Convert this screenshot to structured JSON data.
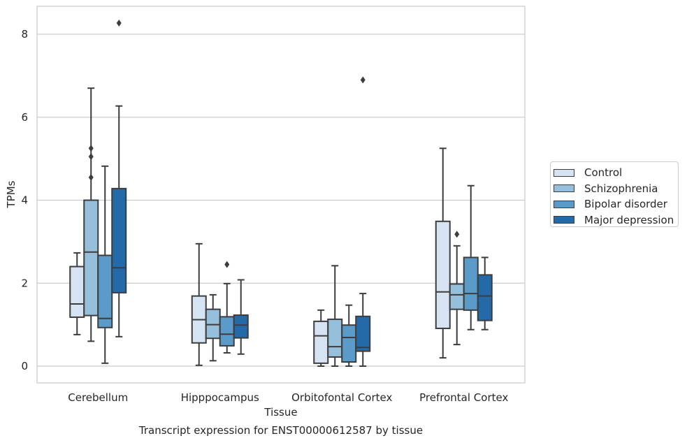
{
  "chart_data": {
    "type": "boxplot",
    "title": "Transcript expression for ENST00000612587 by tissue",
    "xlabel": "Tissue",
    "ylabel": "TPMs",
    "ylim": [
      -0.4,
      8.7
    ],
    "yticks": [
      0,
      2,
      4,
      6,
      8
    ],
    "grid": "horizontal",
    "legend_position": "right",
    "categories": [
      "Cerebellum",
      "Hipppocampus",
      "Orbitofontal Cortex",
      "Prefrontal Cortex"
    ],
    "series": [
      {
        "name": "Control",
        "color": "#d5e3f2",
        "boxes": [
          {
            "whisker_low": 0.76,
            "q1": 1.18,
            "median": 1.5,
            "q3": 2.4,
            "whisker_high": 2.73,
            "outliers": []
          },
          {
            "whisker_low": 0.02,
            "q1": 0.56,
            "median": 1.12,
            "q3": 1.69,
            "whisker_high": 2.95,
            "outliers": []
          },
          {
            "whisker_low": 0.0,
            "q1": 0.07,
            "median": 0.73,
            "q3": 1.08,
            "whisker_high": 1.35,
            "outliers": []
          },
          {
            "whisker_low": 0.2,
            "q1": 0.91,
            "median": 1.79,
            "q3": 3.49,
            "whisker_high": 5.25,
            "outliers": []
          }
        ]
      },
      {
        "name": "Schizophrenia",
        "color": "#96bfdb",
        "boxes": [
          {
            "whisker_low": 0.6,
            "q1": 1.22,
            "median": 2.75,
            "q3": 4.0,
            "whisker_high": 6.7,
            "outliers": [
              4.55,
              5.05,
              5.25
            ]
          },
          {
            "whisker_low": 0.13,
            "q1": 0.67,
            "median": 1.0,
            "q3": 1.37,
            "whisker_high": 1.72,
            "outliers": []
          },
          {
            "whisker_low": 0.0,
            "q1": 0.22,
            "median": 0.47,
            "q3": 1.13,
            "whisker_high": 2.42,
            "outliers": []
          },
          {
            "whisker_low": 0.52,
            "q1": 1.37,
            "median": 1.72,
            "q3": 1.98,
            "whisker_high": 2.9,
            "outliers": [
              3.18
            ]
          }
        ]
      },
      {
        "name": "Bipolar disorder",
        "color": "#5a9bc9",
        "boxes": [
          {
            "whisker_low": 0.07,
            "q1": 0.93,
            "median": 1.15,
            "q3": 2.67,
            "whisker_high": 4.82,
            "outliers": []
          },
          {
            "whisker_low": 0.32,
            "q1": 0.49,
            "median": 0.77,
            "q3": 1.19,
            "whisker_high": 1.99,
            "outliers": [
              2.45
            ]
          },
          {
            "whisker_low": 0.0,
            "q1": 0.1,
            "median": 0.69,
            "q3": 0.99,
            "whisker_high": 1.47,
            "outliers": []
          },
          {
            "whisker_low": 0.88,
            "q1": 1.35,
            "median": 1.75,
            "q3": 2.62,
            "whisker_high": 4.35,
            "outliers": []
          }
        ]
      },
      {
        "name": "Major depression",
        "color": "#2469a8",
        "boxes": [
          {
            "whisker_low": 0.71,
            "q1": 1.77,
            "median": 2.37,
            "q3": 4.28,
            "whisker_high": 6.27,
            "outliers": [
              8.27
            ]
          },
          {
            "whisker_low": 0.29,
            "q1": 0.68,
            "median": 0.99,
            "q3": 1.23,
            "whisker_high": 2.08,
            "outliers": []
          },
          {
            "whisker_low": 0.0,
            "q1": 0.36,
            "median": 0.45,
            "q3": 1.2,
            "whisker_high": 1.75,
            "outliers": [
              6.9
            ]
          },
          {
            "whisker_low": 0.88,
            "q1": 1.1,
            "median": 1.69,
            "q3": 2.2,
            "whisker_high": 2.62,
            "outliers": []
          }
        ]
      }
    ]
  }
}
